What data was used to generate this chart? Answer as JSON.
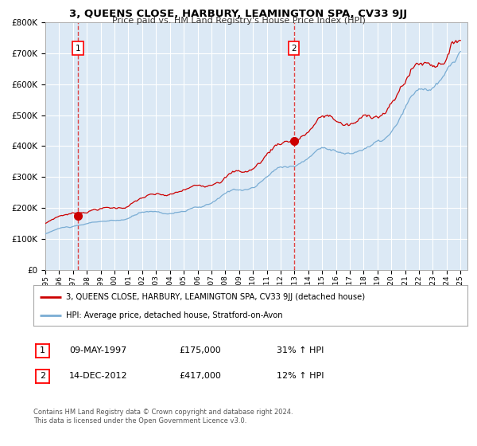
{
  "title": "3, QUEENS CLOSE, HARBURY, LEAMINGTON SPA, CV33 9JJ",
  "subtitle": "Price paid vs. HM Land Registry's House Price Index (HPI)",
  "legend_line1": "3, QUEENS CLOSE, HARBURY, LEAMINGTON SPA, CV33 9JJ (detached house)",
  "legend_line2": "HPI: Average price, detached house, Stratford-on-Avon",
  "annotation1_date": "09-MAY-1997",
  "annotation1_price": "£175,000",
  "annotation1_hpi": "31% ↑ HPI",
  "annotation2_date": "14-DEC-2012",
  "annotation2_price": "£417,000",
  "annotation2_hpi": "12% ↑ HPI",
  "footnote1": "Contains HM Land Registry data © Crown copyright and database right 2024.",
  "footnote2": "This data is licensed under the Open Government Licence v3.0.",
  "sale1_year": 1997.36,
  "sale1_value": 175000,
  "sale2_year": 2012.95,
  "sale2_value": 417000,
  "red_line_color": "#cc0000",
  "blue_line_color": "#7aadd4",
  "bg_color": "#dce9f5",
  "grid_color": "#ffffff",
  "dashed_line_color": "#dd4444",
  "ylim_min": 0,
  "ylim_max": 800000,
  "xlim_min": 1995,
  "xlim_max": 2025.5
}
